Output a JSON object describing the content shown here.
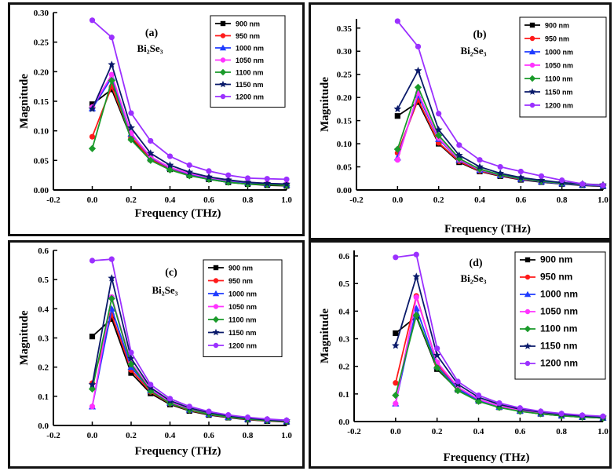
{
  "colors": {
    "900 nm": "#000000",
    "950 nm": "#ff1a1a",
    "1000 nm": "#1f3cff",
    "1050 nm": "#ff33ff",
    "1100 nm": "#1a9a2a",
    "1150 nm": "#0a1a6a",
    "1200 nm": "#9b30ff"
  },
  "chart_data": [
    {
      "type": "line",
      "panel_label": "(a)",
      "material": "Bi₂Se₃",
      "xlabel": "Frequency (THz)",
      "ylabel": "Magnitude",
      "xlim": [
        -0.2,
        1.0
      ],
      "ylim": [
        0.0,
        0.3
      ],
      "xticks": [
        "-0.2",
        "0.0",
        "0.2",
        "0.4",
        "0.6",
        "0.8",
        "1.0"
      ],
      "yticks": [
        "0.00",
        "0.05",
        "0.10",
        "0.15",
        "0.20",
        "0.25",
        "0.30"
      ],
      "x": [
        0.0,
        0.1,
        0.2,
        0.3,
        0.4,
        0.5,
        0.6,
        0.7,
        0.8,
        0.9,
        1.0
      ],
      "legend_placement": "top-right",
      "series": [
        {
          "name": "900 nm",
          "values": [
            0.145,
            0.17,
            0.088,
            0.052,
            0.035,
            0.025,
            0.018,
            0.013,
            0.01,
            0.008,
            0.007
          ]
        },
        {
          "name": "950 nm",
          "values": [
            0.09,
            0.175,
            0.09,
            0.053,
            0.036,
            0.026,
            0.019,
            0.014,
            0.011,
            0.009,
            0.008
          ]
        },
        {
          "name": "1000 nm",
          "values": [
            0.138,
            0.19,
            0.095,
            0.055,
            0.037,
            0.027,
            0.02,
            0.015,
            0.012,
            0.01,
            0.009
          ]
        },
        {
          "name": "1050 nm",
          "values": [
            0.14,
            0.195,
            0.096,
            0.056,
            0.038,
            0.028,
            0.021,
            0.016,
            0.013,
            0.011,
            0.01
          ]
        },
        {
          "name": "1100 nm",
          "values": [
            0.07,
            0.185,
            0.085,
            0.05,
            0.034,
            0.024,
            0.018,
            0.013,
            0.01,
            0.009,
            0.008
          ]
        },
        {
          "name": "1150 nm",
          "values": [
            0.137,
            0.212,
            0.105,
            0.062,
            0.042,
            0.03,
            0.022,
            0.017,
            0.013,
            0.011,
            0.01
          ]
        },
        {
          "name": "1200 nm",
          "values": [
            0.287,
            0.258,
            0.13,
            0.083,
            0.057,
            0.042,
            0.032,
            0.025,
            0.02,
            0.019,
            0.018
          ]
        }
      ]
    },
    {
      "type": "line",
      "panel_label": "(b)",
      "material": "Bi₂Se₃",
      "xlabel": "Frequency (THz)",
      "ylabel": "Magnitude",
      "xlim": [
        -0.2,
        1.0
      ],
      "ylim": [
        0.0,
        0.37
      ],
      "xticks": [
        "-0.2",
        "0.0",
        "0.2",
        "0.4",
        "0.6",
        "0.8",
        "1.0"
      ],
      "yticks": [
        "0.00",
        "0.05",
        "0.10",
        "0.15",
        "0.20",
        "0.25",
        "0.30",
        "0.35"
      ],
      "x": [
        0.0,
        0.1,
        0.2,
        0.3,
        0.4,
        0.5,
        0.6,
        0.7,
        0.8,
        0.9,
        1.0
      ],
      "legend_placement": "top-right",
      "series": [
        {
          "name": "900 nm",
          "values": [
            0.16,
            0.19,
            0.1,
            0.06,
            0.04,
            0.03,
            0.022,
            0.017,
            0.013,
            0.01,
            0.008
          ]
        },
        {
          "name": "950 nm",
          "values": [
            0.08,
            0.195,
            0.102,
            0.062,
            0.041,
            0.031,
            0.023,
            0.018,
            0.014,
            0.011,
            0.009
          ]
        },
        {
          "name": "1000 nm",
          "values": [
            0.07,
            0.205,
            0.11,
            0.065,
            0.043,
            0.032,
            0.024,
            0.018,
            0.014,
            0.011,
            0.009
          ]
        },
        {
          "name": "1050 nm",
          "values": [
            0.065,
            0.21,
            0.112,
            0.066,
            0.044,
            0.033,
            0.025,
            0.019,
            0.015,
            0.012,
            0.01
          ]
        },
        {
          "name": "1100 nm",
          "values": [
            0.088,
            0.222,
            0.118,
            0.068,
            0.045,
            0.033,
            0.025,
            0.019,
            0.015,
            0.012,
            0.01
          ]
        },
        {
          "name": "1150 nm",
          "values": [
            0.175,
            0.258,
            0.13,
            0.075,
            0.05,
            0.036,
            0.027,
            0.021,
            0.016,
            0.013,
            0.011
          ]
        },
        {
          "name": "1200 nm",
          "values": [
            0.365,
            0.31,
            0.165,
            0.097,
            0.065,
            0.05,
            0.04,
            0.03,
            0.021,
            0.013,
            0.01
          ]
        }
      ]
    },
    {
      "type": "line",
      "panel_label": "(c)",
      "material": "Bi₂Se₃",
      "xlabel": "Frequency (THz)",
      "ylabel": "Magnitude",
      "xlim": [
        -0.2,
        1.0
      ],
      "ylim": [
        0.0,
        0.6
      ],
      "xticks": [
        "-0.2",
        "0.0",
        "0.2",
        "0.4",
        "0.6",
        "0.8",
        "1.0"
      ],
      "yticks": [
        "0.0",
        "0.1",
        "0.2",
        "0.3",
        "0.4",
        "0.5",
        "0.6"
      ],
      "x": [
        0.0,
        0.1,
        0.2,
        0.3,
        0.4,
        0.5,
        0.6,
        0.7,
        0.8,
        0.9,
        1.0
      ],
      "legend_placement": "top-right",
      "series": [
        {
          "name": "900 nm",
          "values": [
            0.305,
            0.365,
            0.18,
            0.11,
            0.072,
            0.05,
            0.036,
            0.027,
            0.02,
            0.015,
            0.012
          ]
        },
        {
          "name": "950 nm",
          "values": [
            0.145,
            0.38,
            0.19,
            0.115,
            0.075,
            0.052,
            0.038,
            0.028,
            0.021,
            0.016,
            0.013
          ]
        },
        {
          "name": "1000 nm",
          "values": [
            0.065,
            0.4,
            0.2,
            0.12,
            0.078,
            0.054,
            0.039,
            0.029,
            0.022,
            0.017,
            0.014
          ]
        },
        {
          "name": "1050 nm",
          "values": [
            0.065,
            0.44,
            0.215,
            0.125,
            0.081,
            0.056,
            0.041,
            0.03,
            0.023,
            0.018,
            0.015
          ]
        },
        {
          "name": "1100 nm",
          "values": [
            0.125,
            0.435,
            0.21,
            0.118,
            0.076,
            0.053,
            0.039,
            0.029,
            0.022,
            0.017,
            0.014
          ]
        },
        {
          "name": "1150 nm",
          "values": [
            0.14,
            0.505,
            0.23,
            0.13,
            0.085,
            0.06,
            0.044,
            0.033,
            0.025,
            0.019,
            0.016
          ]
        },
        {
          "name": "1200 nm",
          "values": [
            0.565,
            0.57,
            0.25,
            0.14,
            0.092,
            0.065,
            0.048,
            0.036,
            0.028,
            0.022,
            0.018
          ]
        }
      ]
    },
    {
      "type": "line",
      "panel_label": "(d)",
      "material": "Bi₂Se₃",
      "xlabel": "Frequency (THz)",
      "ylabel": "Magnitude",
      "xlim": [
        -0.2,
        1.0
      ],
      "ylim": [
        0.0,
        0.62
      ],
      "xticks": [
        "-0.2",
        "0.0",
        "0.2",
        "0.4",
        "0.6",
        "0.8",
        "1.0"
      ],
      "yticks": [
        "0.0",
        "0.1",
        "0.2",
        "0.3",
        "0.4",
        "0.5",
        "0.6"
      ],
      "x": [
        0.0,
        0.1,
        0.2,
        0.3,
        0.4,
        0.5,
        0.6,
        0.7,
        0.8,
        0.9,
        1.0
      ],
      "legend_placement": "top-right",
      "series": [
        {
          "name": "900 nm",
          "values": [
            0.32,
            0.38,
            0.19,
            0.115,
            0.075,
            0.052,
            0.038,
            0.028,
            0.021,
            0.016,
            0.013
          ]
        },
        {
          "name": "950 nm",
          "values": [
            0.14,
            0.455,
            0.21,
            0.12,
            0.078,
            0.054,
            0.039,
            0.029,
            0.022,
            0.017,
            0.014
          ]
        },
        {
          "name": "1000 nm",
          "values": [
            0.065,
            0.41,
            0.2,
            0.118,
            0.077,
            0.053,
            0.039,
            0.029,
            0.022,
            0.017,
            0.014
          ]
        },
        {
          "name": "1050 nm",
          "values": [
            0.065,
            0.45,
            0.215,
            0.125,
            0.081,
            0.056,
            0.041,
            0.03,
            0.023,
            0.018,
            0.015
          ]
        },
        {
          "name": "1100 nm",
          "values": [
            0.095,
            0.385,
            0.195,
            0.112,
            0.073,
            0.051,
            0.037,
            0.028,
            0.021,
            0.016,
            0.013
          ]
        },
        {
          "name": "1150 nm",
          "values": [
            0.275,
            0.525,
            0.24,
            0.135,
            0.088,
            0.062,
            0.045,
            0.034,
            0.026,
            0.02,
            0.016
          ]
        },
        {
          "name": "1200 nm",
          "values": [
            0.595,
            0.605,
            0.265,
            0.145,
            0.095,
            0.067,
            0.049,
            0.037,
            0.029,
            0.023,
            0.019
          ]
        }
      ]
    }
  ]
}
